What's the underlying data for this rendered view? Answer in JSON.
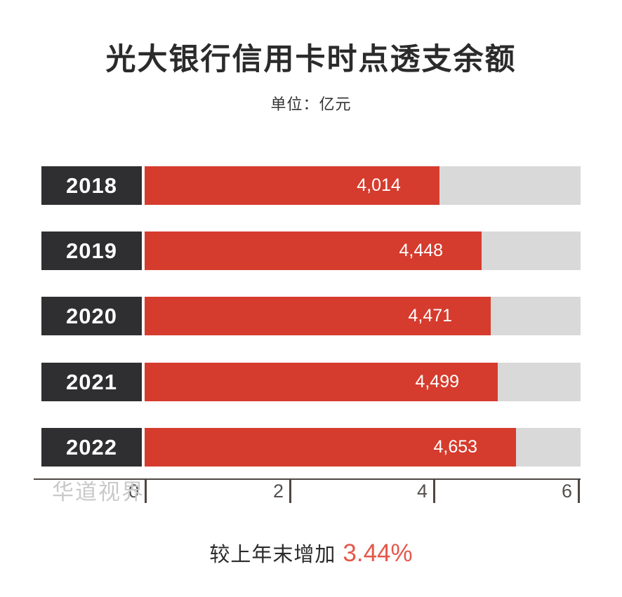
{
  "chart_data": {
    "type": "bar",
    "orientation": "horizontal",
    "title": "光大银行信用卡时点透支余额",
    "unit_label": "单位：亿元",
    "categories": [
      "2018",
      "2019",
      "2020",
      "2021",
      "2022"
    ],
    "values": [
      4014,
      4448,
      4471,
      4499,
      4653
    ],
    "xlim": [
      0,
      6000
    ],
    "grid": false,
    "legend": "none",
    "rows": [
      {
        "year": "2018",
        "value": 4014,
        "value_label": "4,014",
        "bar_pct": 67.6
      },
      {
        "year": "2019",
        "value": 4448,
        "value_label": "4,448",
        "bar_pct": 77.3
      },
      {
        "year": "2020",
        "value": 4471,
        "value_label": "4,471",
        "bar_pct": 79.4
      },
      {
        "year": "2021",
        "value": 4499,
        "value_label": "4,499",
        "bar_pct": 81.0
      },
      {
        "year": "2022",
        "value": 4653,
        "value_label": "4,653",
        "bar_pct": 85.2
      }
    ],
    "x_ticks": [
      {
        "label": "0",
        "x": 206
      },
      {
        "label": "2",
        "x": 412
      },
      {
        "label": "4",
        "x": 617
      },
      {
        "label": "6",
        "x": 823
      }
    ]
  },
  "watermark": "华道视界",
  "footer": {
    "prefix": "较上年末增加",
    "highlight": "3.44%"
  },
  "colors": {
    "bar_red": "#d53c2e",
    "year_box": "#2f2f31",
    "track_gray": "#d8d9d8",
    "axis": "#4d4744",
    "highlight_red": "#e4584a",
    "watermark_gray": "#c9c9c9",
    "title_text": "#2b2b2b"
  }
}
